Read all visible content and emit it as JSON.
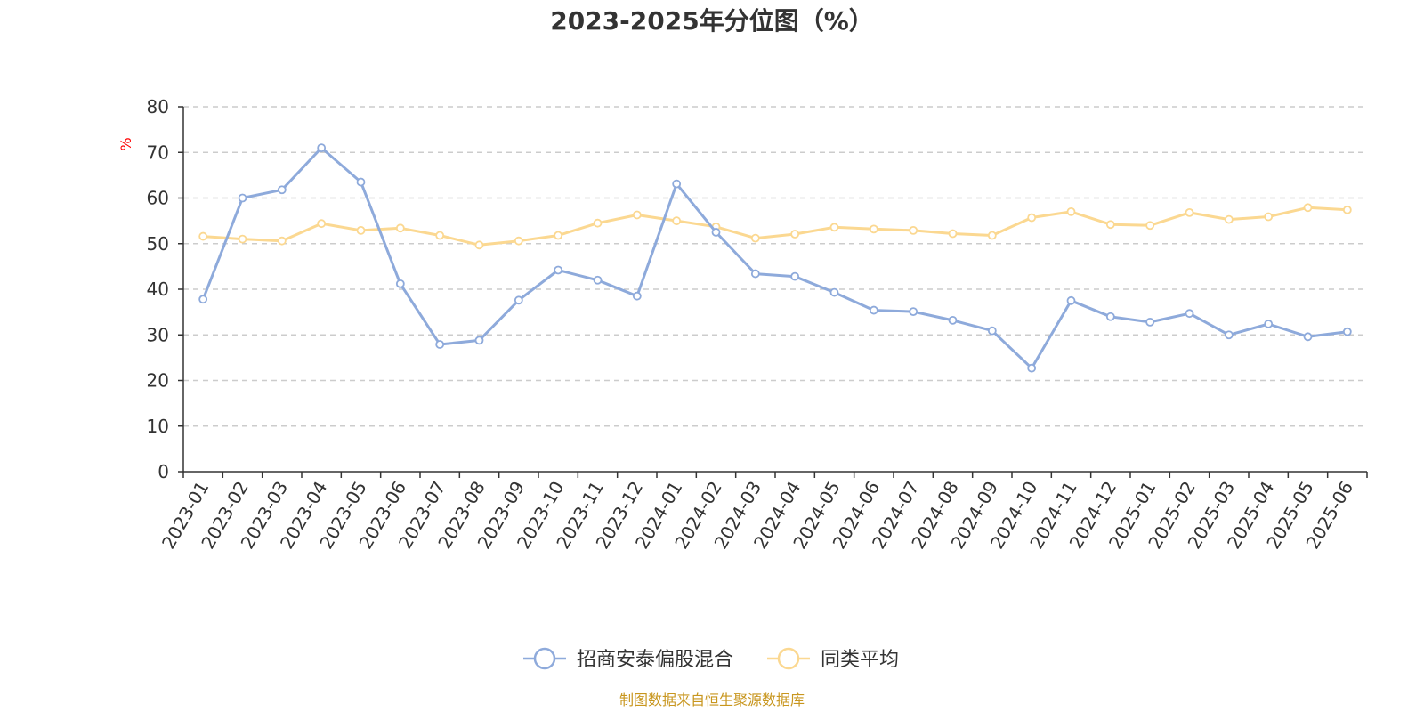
{
  "chart_data": {
    "type": "line",
    "title": "2023-2025年分位图（%）",
    "ylabel": "%",
    "xlabel": "",
    "ylim": [
      0,
      80
    ],
    "yticks": [
      0,
      10,
      20,
      30,
      40,
      50,
      60,
      70,
      80
    ],
    "grid": true,
    "legend_position": "bottom-center",
    "categories": [
      "2023-01",
      "2023-02",
      "2023-03",
      "2023-04",
      "2023-05",
      "2023-06",
      "2023-07",
      "2023-08",
      "2023-09",
      "2023-10",
      "2023-11",
      "2023-12",
      "2024-01",
      "2024-02",
      "2024-03",
      "2024-04",
      "2024-05",
      "2024-06",
      "2024-07",
      "2024-08",
      "2024-09",
      "2024-10",
      "2024-11",
      "2024-12",
      "2025-01",
      "2025-02",
      "2025-03",
      "2025-04",
      "2025-05",
      "2025-06"
    ],
    "series": [
      {
        "name": "招商安泰偏股混合",
        "color": "#8eaadb",
        "values": [
          37.8,
          60.0,
          61.8,
          71.0,
          63.5,
          41.2,
          27.9,
          28.8,
          37.6,
          44.2,
          42.0,
          38.5,
          63.1,
          52.5,
          43.4,
          42.8,
          39.3,
          35.4,
          35.1,
          33.2,
          30.9,
          22.7,
          37.5,
          34.0,
          32.8,
          34.7,
          30.0,
          32.4,
          29.6,
          30.7
        ]
      },
      {
        "name": "同类平均",
        "color": "#fbd891",
        "values": [
          51.6,
          51.0,
          50.6,
          54.4,
          52.9,
          53.4,
          51.8,
          49.7,
          50.6,
          51.8,
          54.5,
          56.3,
          55.0,
          53.7,
          51.2,
          52.1,
          53.6,
          53.2,
          52.9,
          52.2,
          51.8,
          55.7,
          57.0,
          54.2,
          54.0,
          56.8,
          55.3,
          55.9,
          57.9,
          57.4
        ]
      }
    ]
  },
  "source_text": "制图数据来自恒生聚源数据库"
}
